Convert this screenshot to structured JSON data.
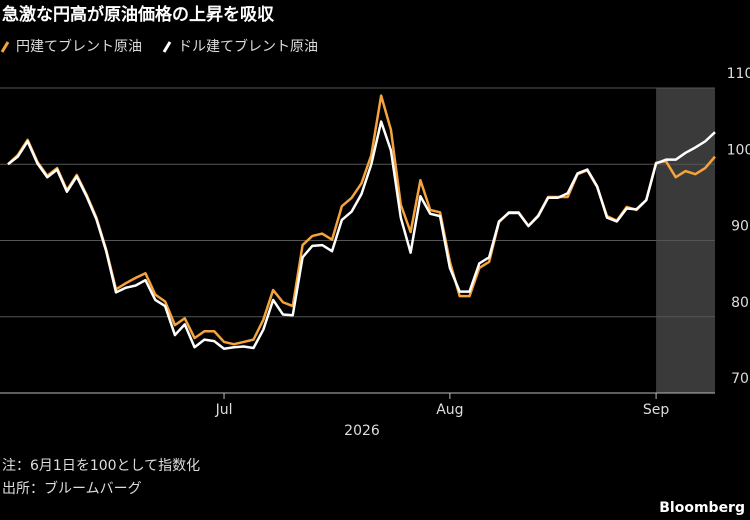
{
  "chart_data": {
    "type": "line",
    "title": "急激な円高が原油価格の上昇を吸収",
    "categories": [
      null,
      null,
      null,
      null,
      null,
      null,
      null,
      null,
      null,
      null,
      null,
      null,
      null,
      null,
      null,
      null,
      null,
      null,
      null,
      null,
      null,
      null,
      "Jul",
      null,
      null,
      null,
      null,
      null,
      null,
      null,
      null,
      null,
      null,
      null,
      null,
      null,
      null,
      null,
      null,
      null,
      null,
      null,
      null,
      null,
      null,
      "Aug",
      null,
      null,
      null,
      null,
      null,
      null,
      null,
      null,
      null,
      null,
      null,
      null,
      null,
      null,
      null,
      null,
      null,
      null,
      null,
      null,
      "Sep",
      null,
      null,
      null,
      null,
      null,
      null
    ],
    "xlabel": "2026",
    "series": [
      {
        "name": "円建てブレント原油",
        "color": "#f5a33b",
        "values": [
          100,
          101.2,
          103.2,
          100.3,
          98.5,
          99.5,
          96.6,
          98.6,
          96.0,
          93.0,
          88.8,
          83.6,
          84.4,
          85.1,
          85.7,
          82.9,
          82.0,
          78.9,
          79.8,
          77.2,
          78.1,
          78.1,
          76.7,
          76.4,
          76.7,
          77.0,
          79.6,
          83.5,
          81.9,
          81.4,
          89.4,
          90.6,
          90.9,
          90.1,
          94.5,
          95.6,
          97.5,
          101.2,
          109.0,
          104.5,
          94.7,
          91.1,
          97.9,
          94.0,
          93.7,
          87.2,
          82.7,
          82.7,
          86.4,
          87.2,
          92.4,
          93.7,
          93.7,
          91.9,
          93.3,
          95.7,
          95.7,
          95.7,
          98.7,
          99.2,
          97.0,
          93.2,
          92.6,
          94.4,
          94.0,
          95.3,
          100.2,
          100.4,
          98.3,
          99.1,
          98.7,
          99.5,
          101.0
        ]
      },
      {
        "name": "ドル建てブレント原油",
        "color": "#ffffff",
        "values": [
          100,
          101.0,
          103.0,
          100.1,
          98.3,
          99.3,
          96.4,
          98.4,
          95.8,
          92.8,
          88.6,
          83.2,
          83.8,
          84.1,
          84.8,
          82.2,
          81.4,
          77.6,
          79.0,
          76.0,
          77.0,
          76.8,
          75.8,
          76.0,
          76.1,
          75.9,
          78.3,
          82.2,
          80.3,
          80.2,
          87.8,
          89.3,
          89.4,
          88.6,
          92.7,
          93.8,
          96.1,
          100.0,
          105.6,
          101.8,
          93.0,
          88.4,
          95.8,
          93.5,
          93.2,
          86.4,
          83.3,
          83.3,
          87.0,
          87.8,
          92.5,
          93.6,
          93.6,
          91.9,
          93.2,
          95.6,
          95.6,
          96.2,
          98.8,
          99.3,
          97.1,
          93.0,
          92.5,
          94.2,
          94.1,
          95.3,
          100.1,
          100.6,
          100.6,
          101.5,
          102.2,
          103.0,
          104.2
        ]
      }
    ],
    "ylim": [
      70,
      110
    ],
    "yticks": [
      70,
      80,
      90,
      100,
      110
    ],
    "grid": true,
    "note": "注：6月1日を100として指数化",
    "source": "出所：ブルームバーグ",
    "brand": "Bloomberg"
  }
}
